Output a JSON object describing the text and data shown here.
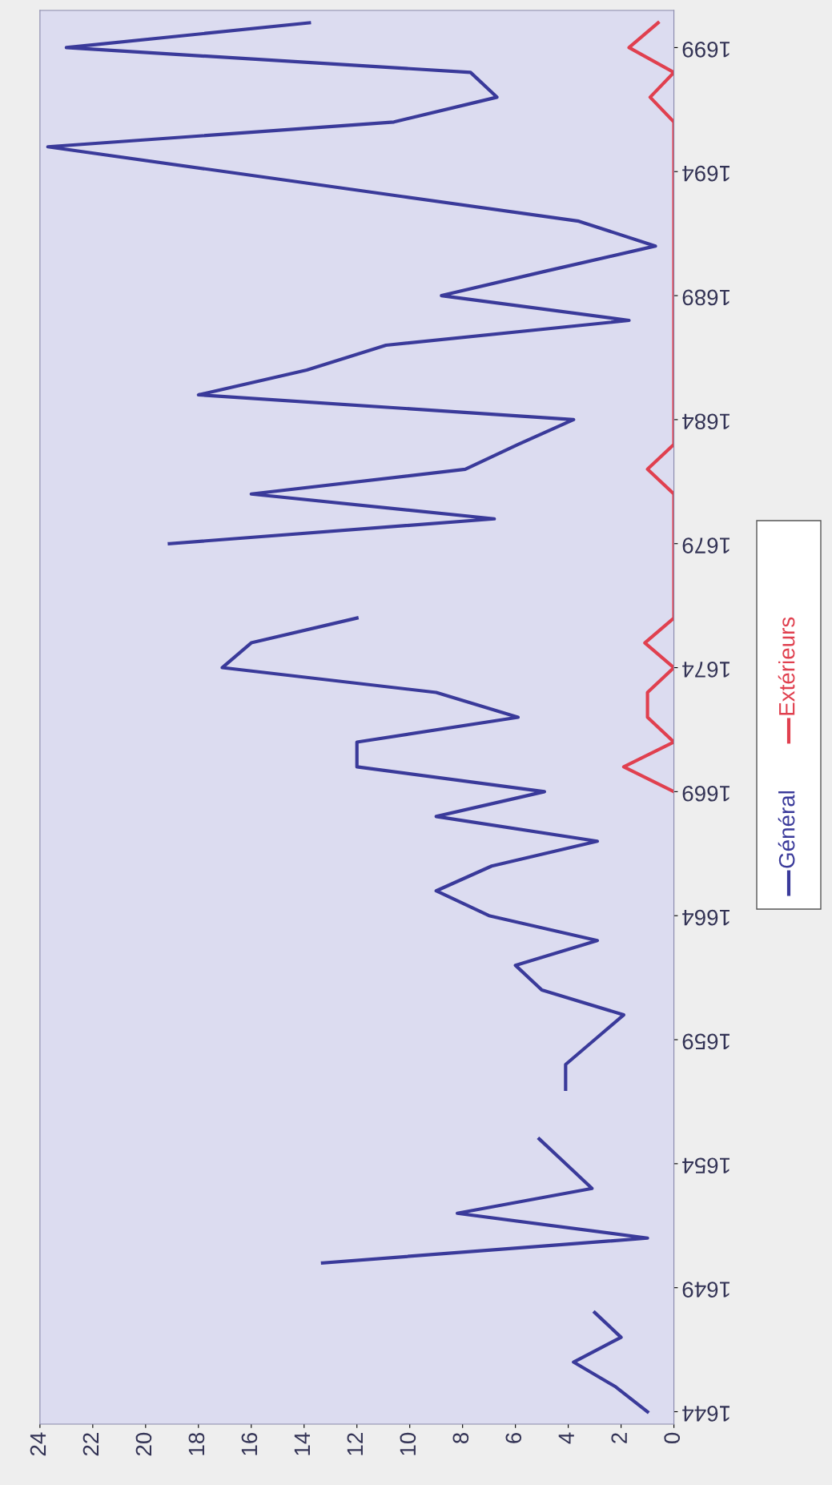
{
  "chart_data": {
    "type": "line",
    "orientation": "horizontal",
    "x": [
      1644,
      1645,
      1646,
      1647,
      1648,
      1649,
      1650,
      1651,
      1652,
      1653,
      1654,
      1655,
      1656,
      1657,
      1658,
      1659,
      1660,
      1661,
      1662,
      1663,
      1664,
      1665,
      1666,
      1667,
      1668,
      1669,
      1670,
      1671,
      1672,
      1673,
      1674,
      1675,
      1676,
      1677,
      1678,
      1679,
      1680,
      1681,
      1682,
      1683,
      1684,
      1685,
      1686,
      1687,
      1688,
      1689,
      1690,
      1691,
      1692,
      1693,
      1694,
      1695,
      1696,
      1697,
      1698,
      1699,
      1700
    ],
    "series": [
      {
        "name": "Général",
        "color": "#3a3a9a",
        "values": [
          1.0,
          2.2,
          3.8,
          2.0,
          3.0,
          null,
          13.3,
          1.0,
          8.2,
          3.1,
          4.1,
          5.1,
          null,
          4.1,
          4.1,
          3.0,
          1.9,
          5.0,
          6.0,
          2.9,
          7.0,
          9.0,
          6.9,
          2.9,
          9.0,
          4.9,
          12.0,
          12.0,
          5.9,
          9.0,
          17.1,
          16.0,
          12.0,
          null,
          null,
          19.1,
          6.8,
          16.0,
          7.9,
          5.9,
          3.8,
          18.0,
          13.9,
          10.9,
          1.7,
          8.8,
          4.8,
          0.7,
          3.6,
          10.3,
          17.0,
          23.7,
          10.6,
          6.7,
          7.7,
          23.0,
          13.8
        ]
      },
      {
        "name": "Extérieurs",
        "color": "#e0404f",
        "values": [
          null,
          null,
          null,
          null,
          null,
          null,
          null,
          null,
          null,
          null,
          null,
          null,
          null,
          null,
          null,
          null,
          null,
          null,
          null,
          null,
          null,
          null,
          null,
          null,
          null,
          0,
          1.9,
          0,
          1.0,
          1.0,
          0,
          1.1,
          0,
          0,
          0,
          0,
          0,
          0,
          1.0,
          0,
          0,
          0,
          0,
          0,
          0,
          0,
          0,
          0,
          0,
          0,
          0,
          0,
          0,
          0.9,
          0,
          1.7,
          0.6
        ]
      }
    ],
    "xlim": [
      24,
      0
    ],
    "xticks": [
      0,
      2,
      4,
      6,
      8,
      10,
      12,
      14,
      16,
      18,
      20,
      22,
      24
    ],
    "ylim": [
      1643.5,
      1700.5
    ],
    "yticks": [
      1644,
      1649,
      1654,
      1659,
      1664,
      1669,
      1674,
      1679,
      1684,
      1689,
      1694,
      1699
    ],
    "legend": "right",
    "marker": "none",
    "line_style": "solid",
    "grid": false
  }
}
